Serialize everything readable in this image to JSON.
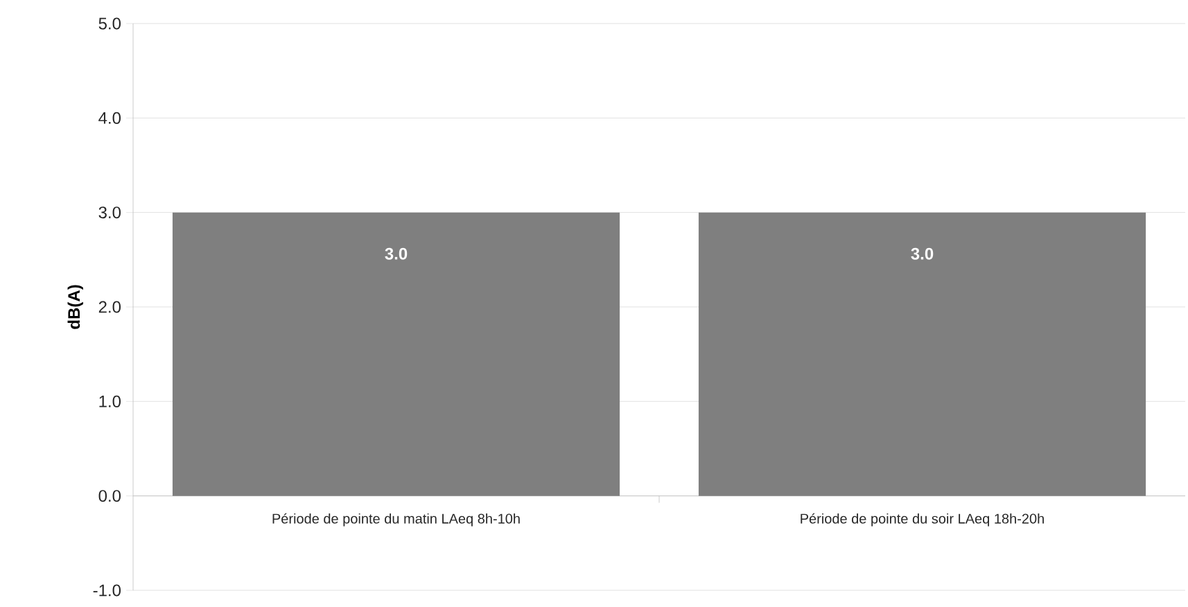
{
  "chart_data": {
    "type": "bar",
    "ylabel": "dB(A)",
    "categories": [
      "Période de pointe du matin LAeq 8h-10h",
      "Période de pointe du soir LAeq 18h-20h"
    ],
    "values": [
      3.0,
      3.0
    ],
    "value_labels": [
      "3.0",
      "3.0"
    ],
    "color": "#7f7f7f",
    "ylim": [
      -1,
      5
    ],
    "yticks": [
      {
        "value": -1,
        "label": "-1.0"
      },
      {
        "value": 0,
        "label": "0.0"
      },
      {
        "value": 1,
        "label": "1.0"
      },
      {
        "value": 2,
        "label": "2.0"
      },
      {
        "value": 3,
        "label": "3.0"
      },
      {
        "value": 4,
        "label": "4.0"
      },
      {
        "value": 5,
        "label": "5.0"
      }
    ],
    "grid": "y"
  }
}
